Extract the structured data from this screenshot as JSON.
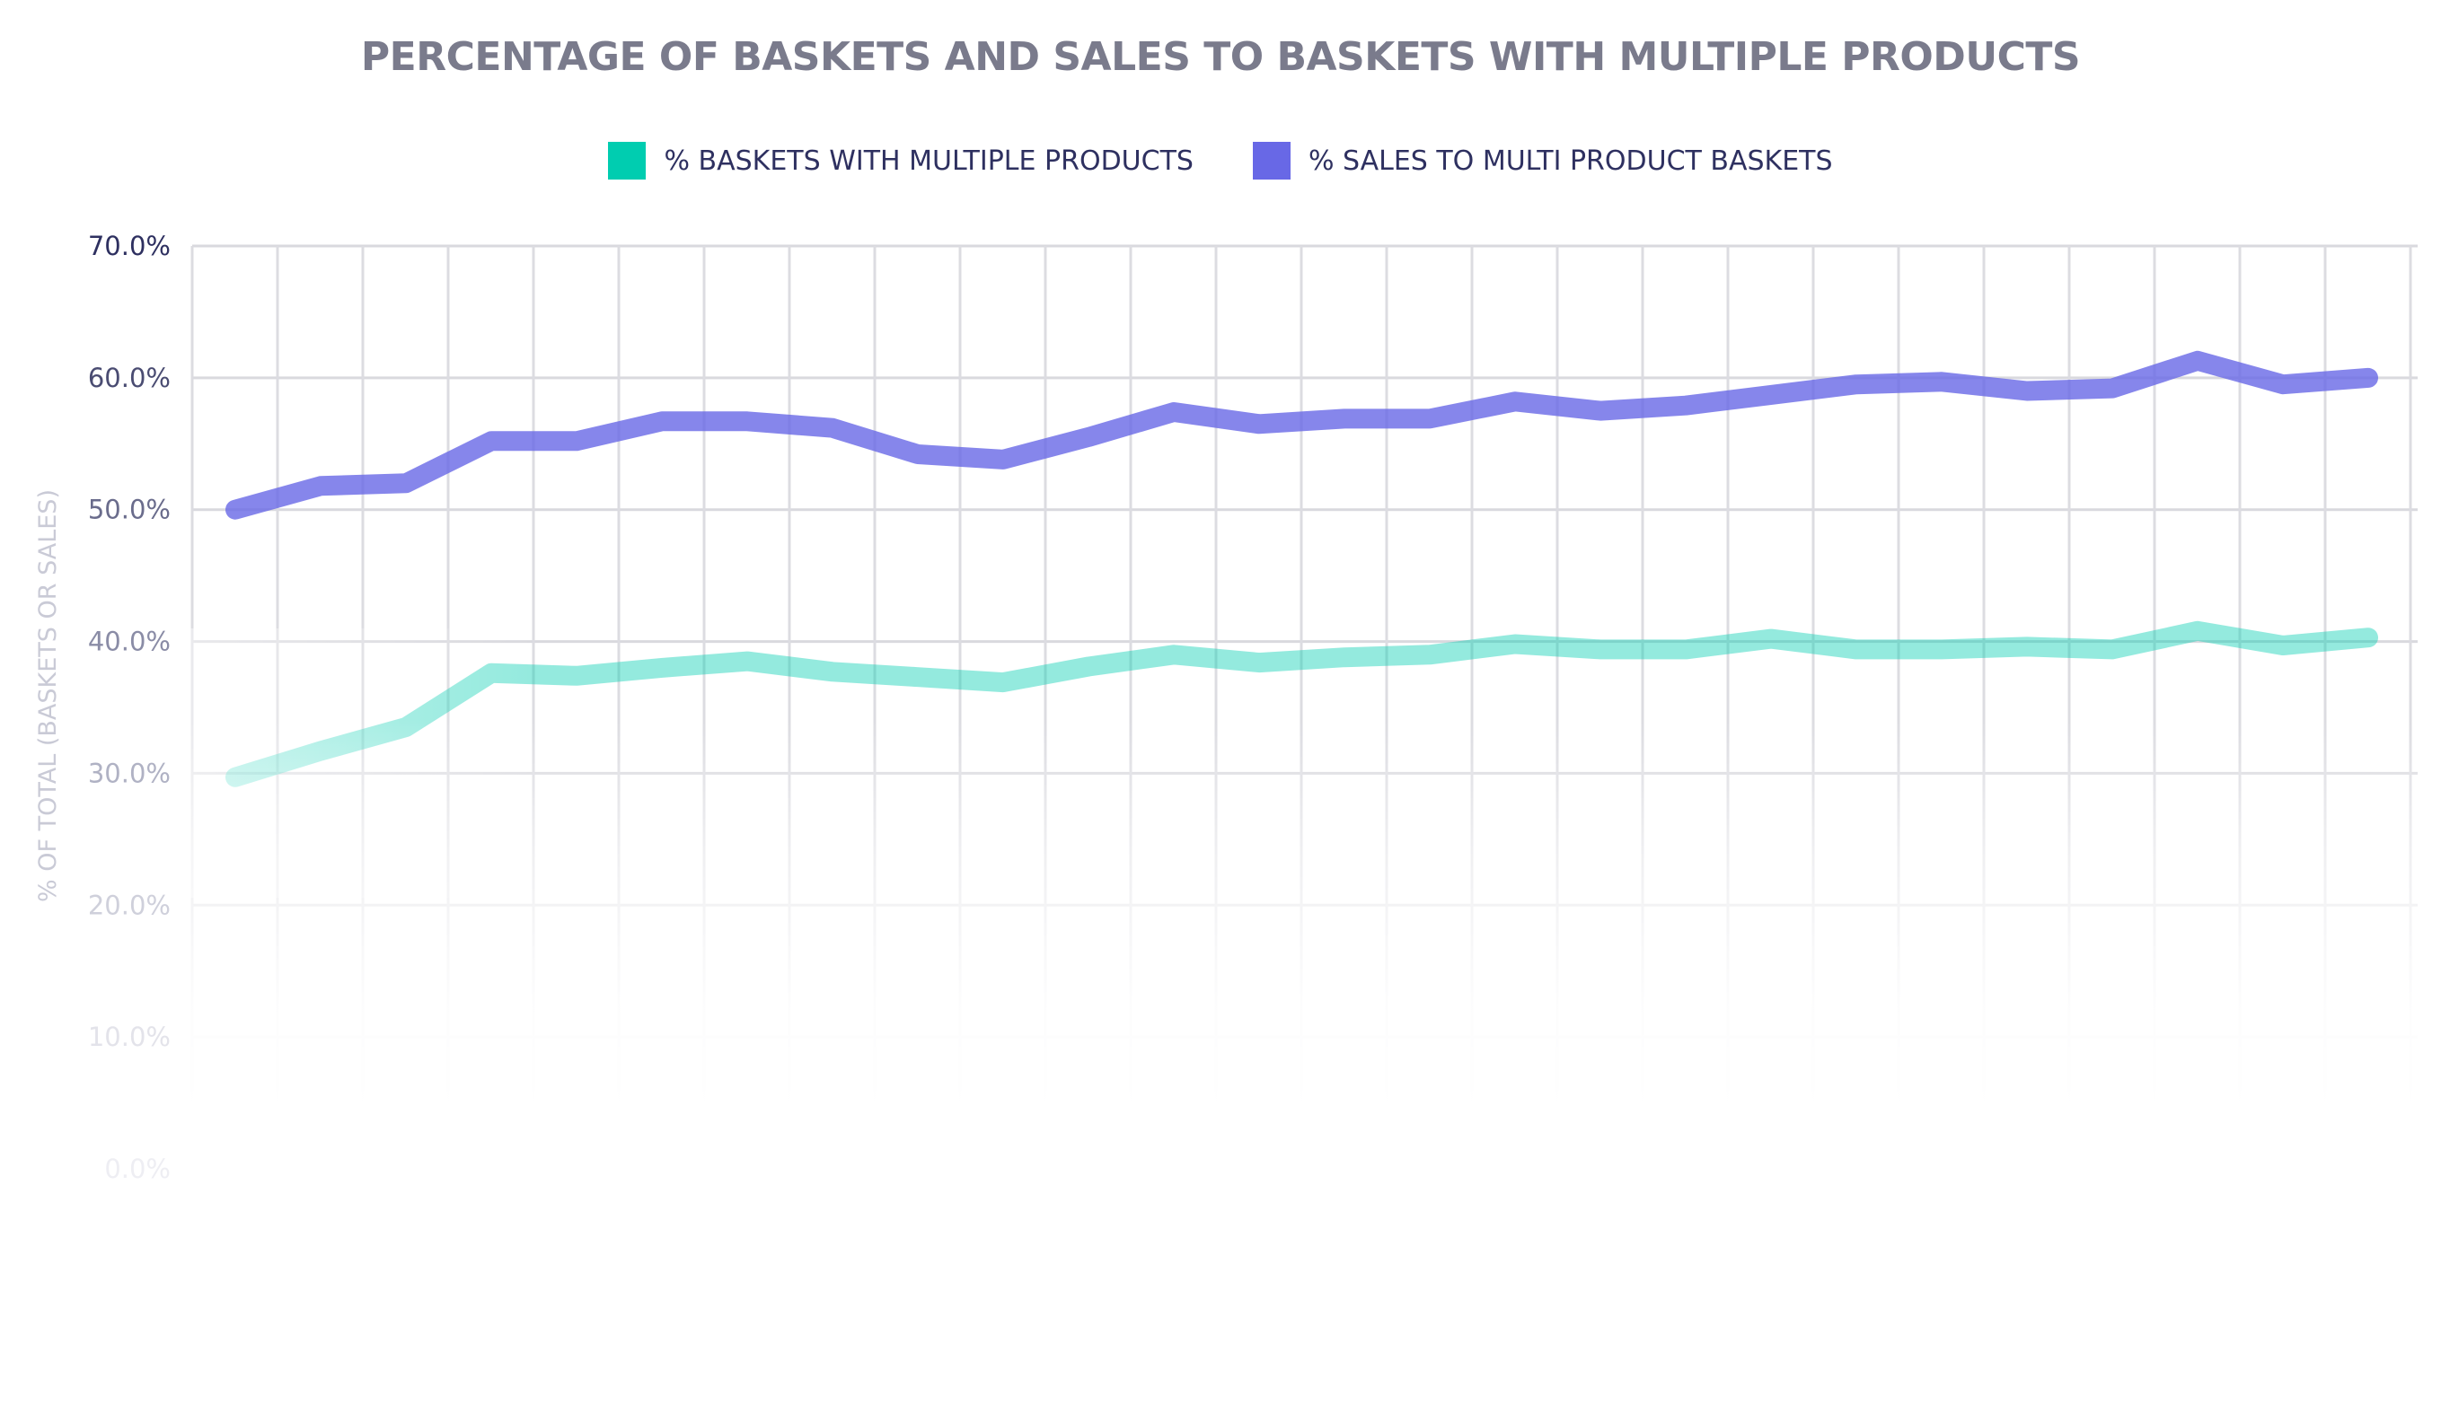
{
  "chart_data": {
    "type": "line",
    "title": "PERCENTAGE OF BASKETS AND SALES TO BASKETS WITH MULTIPLE PRODUCTS",
    "xlabel": "",
    "ylabel": "% OF TOTAL (BASKETS OR SALES)",
    "ylim": [
      0,
      70
    ],
    "yticks": [
      "70.0%",
      "60.0%",
      "50.0%",
      "40.0%",
      "30.0%",
      "20.0%",
      "10.0%",
      "0.0%"
    ],
    "grid": true,
    "legend_position": "top-center",
    "x": [
      1,
      2,
      3,
      4,
      5,
      6,
      7,
      8,
      9,
      10,
      11,
      12,
      13,
      14,
      15,
      16,
      17,
      18,
      19,
      20,
      21,
      22,
      23,
      24,
      25,
      26
    ],
    "series": [
      {
        "name": "% BASKETS WITH MULTIPLE PRODUCTS",
        "color": "#00cdb0",
        "values": [
          29.7,
          31.7,
          33.5,
          37.6,
          37.4,
          38.0,
          38.5,
          37.7,
          37.3,
          36.9,
          38.1,
          39.0,
          38.4,
          38.8,
          39.0,
          39.8,
          39.4,
          39.4,
          40.2,
          39.4,
          39.4,
          39.6,
          39.4,
          40.8,
          39.7,
          40.3
        ]
      },
      {
        "name": "% SALES TO MULTI PRODUCT BASKETS",
        "color": "#6868e6",
        "values": [
          50.0,
          51.8,
          52.0,
          55.2,
          55.2,
          56.7,
          56.7,
          56.2,
          54.2,
          53.8,
          55.5,
          57.4,
          56.5,
          56.9,
          56.9,
          58.2,
          57.5,
          57.9,
          58.7,
          59.5,
          59.7,
          59.0,
          59.2,
          61.3,
          59.5,
          60.0
        ]
      }
    ]
  }
}
